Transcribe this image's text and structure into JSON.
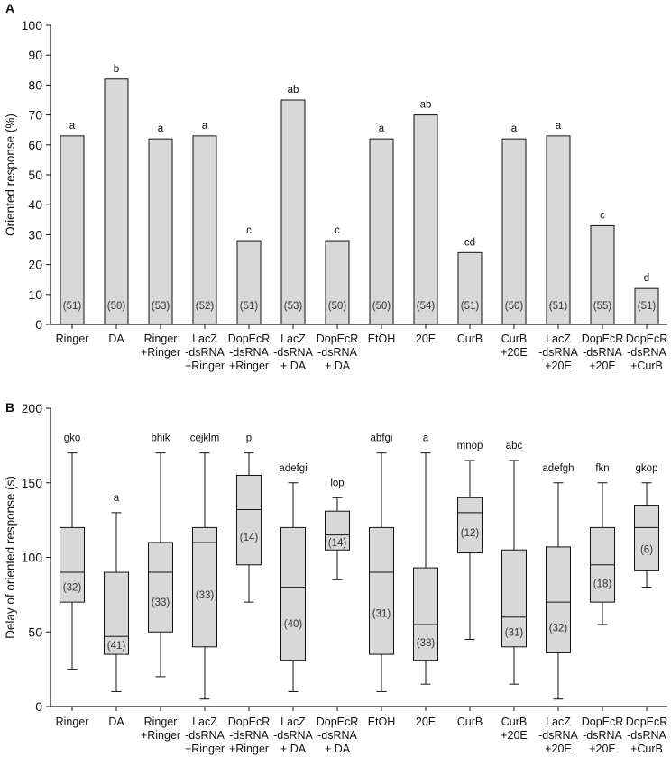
{
  "chart_data": [
    {
      "panel": "A",
      "type": "bar",
      "ylabel": "Oriented response (%)",
      "xlabel": "",
      "ylim": [
        0,
        100
      ],
      "yticks": [
        0,
        10,
        20,
        30,
        40,
        50,
        60,
        70,
        80,
        90,
        100
      ],
      "categories": [
        [
          "Ringer"
        ],
        [
          "DA"
        ],
        [
          "Ringer",
          "+Ringer"
        ],
        [
          "LacZ",
          "-dsRNA",
          "+Ringer"
        ],
        [
          "DopEcR",
          "-dsRNA",
          "+Ringer"
        ],
        [
          "LacZ",
          "-dsRNA",
          "+ DA"
        ],
        [
          "DopEcR",
          "-dsRNA",
          "+ DA"
        ],
        [
          "EtOH"
        ],
        [
          "20E"
        ],
        [
          "CurB"
        ],
        [
          "CurB",
          "+20E"
        ],
        [
          "LacZ",
          "-dsRNA",
          "+20E"
        ],
        [
          "DopEcR",
          "-dsRNA",
          "+20E"
        ],
        [
          "DopEcR",
          "-dsRNA",
          "+CurB"
        ]
      ],
      "values": [
        63,
        82,
        62,
        63,
        28,
        75,
        28,
        62,
        70,
        24,
        62,
        63,
        33,
        12
      ],
      "significance": [
        "a",
        "b",
        "a",
        "a",
        "c",
        "ab",
        "c",
        "a",
        "ab",
        "cd",
        "a",
        "a",
        "c",
        "d"
      ],
      "n": [
        "(51)",
        "(50)",
        "(53)",
        "(52)",
        "(51)",
        "(53)",
        "(50)",
        "(50)",
        "(54)",
        "(51)",
        "(50)",
        "(51)",
        "(55)",
        "(51)"
      ]
    },
    {
      "panel": "B",
      "type": "box",
      "ylabel": "Delay of oriented response (s)",
      "xlabel": "",
      "ylim": [
        0,
        200
      ],
      "yticks": [
        0,
        50,
        100,
        150,
        200
      ],
      "categories": [
        [
          "Ringer"
        ],
        [
          "DA"
        ],
        [
          "Ringer",
          "+Ringer"
        ],
        [
          "LacZ",
          "-dsRNA",
          "+Ringer"
        ],
        [
          "DopEcR",
          "-dsRNA",
          "+Ringer"
        ],
        [
          "LacZ",
          "-dsRNA",
          "+ DA"
        ],
        [
          "DopEcR",
          "-dsRNA",
          "+ DA"
        ],
        [
          "EtOH"
        ],
        [
          "20E"
        ],
        [
          "CurB"
        ],
        [
          "CurB",
          "+20E"
        ],
        [
          "LacZ",
          "-dsRNA",
          "+20E"
        ],
        [
          "DopEcR",
          "-dsRNA",
          "+20E"
        ],
        [
          "DopEcR",
          "-dsRNA",
          "+CurB"
        ]
      ],
      "boxes": [
        {
          "min": 25,
          "q1": 70,
          "median": 90,
          "q3": 120,
          "max": 170
        },
        {
          "min": 10,
          "q1": 35,
          "median": 47,
          "q3": 90,
          "max": 130
        },
        {
          "min": 20,
          "q1": 50,
          "median": 90,
          "q3": 110,
          "max": 170
        },
        {
          "min": 5,
          "q1": 40,
          "median": 110,
          "q3": 120,
          "max": 170
        },
        {
          "min": 70,
          "q1": 95,
          "median": 132,
          "q3": 155,
          "max": 170
        },
        {
          "min": 10,
          "q1": 31,
          "median": 80,
          "q3": 120,
          "max": 150
        },
        {
          "min": 85,
          "q1": 105,
          "median": 115,
          "q3": 131,
          "max": 140
        },
        {
          "min": 10,
          "q1": 35,
          "median": 90,
          "q3": 120,
          "max": 170
        },
        {
          "min": 15,
          "q1": 31,
          "median": 55,
          "q3": 93,
          "max": 170
        },
        {
          "min": 45,
          "q1": 103,
          "median": 130,
          "q3": 140,
          "max": 165
        },
        {
          "min": 15,
          "q1": 40,
          "median": 60,
          "q3": 105,
          "max": 165
        },
        {
          "min": 5,
          "q1": 36,
          "median": 70,
          "q3": 107,
          "max": 150
        },
        {
          "min": 55,
          "q1": 70,
          "median": 95,
          "q3": 120,
          "max": 150
        },
        {
          "min": 80,
          "q1": 91,
          "median": 120,
          "q3": 135,
          "max": 150
        }
      ],
      "significance": [
        "gko",
        "a",
        "bhik",
        "cejklm",
        "p",
        "adefgi",
        "lop",
        "abfgi",
        "a",
        "mnop",
        "abc",
        "adefgh",
        "fkn",
        "gkop"
      ],
      "n": [
        "(32)",
        "(41)",
        "(33)",
        "(33)",
        "(14)",
        "(40)",
        "(14)",
        "(31)",
        "(38)",
        "(12)",
        "(31)",
        "(32)",
        "(18)",
        "(6)"
      ]
    }
  ]
}
